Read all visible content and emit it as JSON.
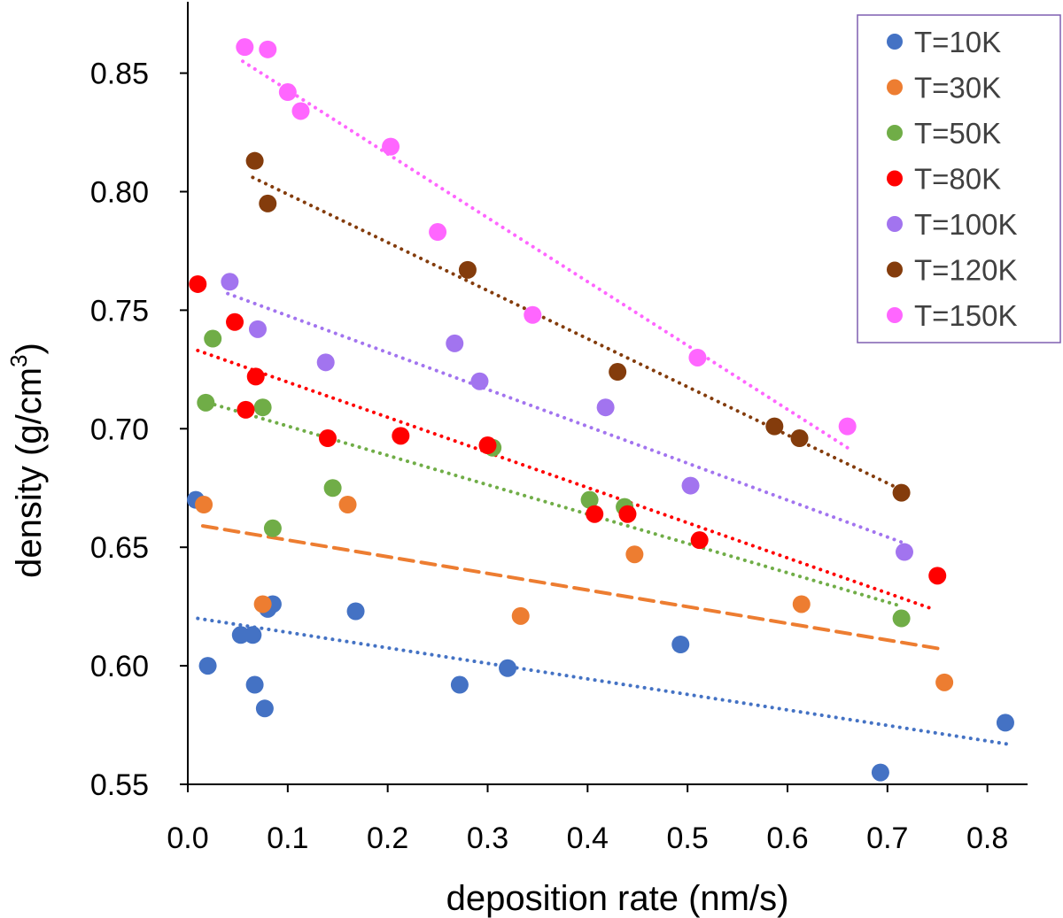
{
  "chart_data": {
    "type": "scatter",
    "title": "",
    "xlabel": "deposition rate (nm/s)",
    "ylabel_main": "density (g/cm",
    "ylabel_sup": "3",
    "ylabel_end": ")",
    "xlim": [
      0.0,
      0.85
    ],
    "ylim": [
      0.55,
      0.88
    ],
    "xticks": [
      0.0,
      0.1,
      0.2,
      0.3,
      0.4,
      0.5,
      0.6,
      0.7,
      0.8
    ],
    "xtick_labels": [
      "0.0",
      "0.1",
      "0.2",
      "0.3",
      "0.4",
      "0.5",
      "0.6",
      "0.7",
      "0.8"
    ],
    "yticks": [
      0.55,
      0.6,
      0.65,
      0.7,
      0.75,
      0.8,
      0.85
    ],
    "ytick_labels": [
      "0.55",
      "0.60",
      "0.65",
      "0.70",
      "0.75",
      "0.80",
      "0.85"
    ],
    "grid": false,
    "legend_position": "top-right",
    "series": [
      {
        "name": "T=10K",
        "color": "#4472C4",
        "trend_style": "dotted",
        "trend": [
          [
            0.01,
            0.62
          ],
          [
            0.82,
            0.567
          ]
        ],
        "points": [
          [
            0.008,
            0.67
          ],
          [
            0.02,
            0.6
          ],
          [
            0.053,
            0.613
          ],
          [
            0.065,
            0.613
          ],
          [
            0.067,
            0.592
          ],
          [
            0.077,
            0.582
          ],
          [
            0.08,
            0.624
          ],
          [
            0.085,
            0.626
          ],
          [
            0.168,
            0.623
          ],
          [
            0.272,
            0.592
          ],
          [
            0.32,
            0.599
          ],
          [
            0.493,
            0.609
          ],
          [
            0.693,
            0.555
          ],
          [
            0.818,
            0.576
          ]
        ]
      },
      {
        "name": "T=30K",
        "color": "#ED7D31",
        "trend_style": "dashed",
        "trend": [
          [
            0.015,
            0.659
          ],
          [
            0.755,
            0.607
          ]
        ],
        "points": [
          [
            0.016,
            0.668
          ],
          [
            0.075,
            0.626
          ],
          [
            0.16,
            0.668
          ],
          [
            0.333,
            0.621
          ],
          [
            0.447,
            0.647
          ],
          [
            0.614,
            0.626
          ],
          [
            0.757,
            0.593
          ]
        ]
      },
      {
        "name": "T=50K",
        "color": "#70AD47",
        "trend_style": "dotted",
        "trend": [
          [
            0.02,
            0.711
          ],
          [
            0.715,
            0.625
          ]
        ],
        "points": [
          [
            0.018,
            0.711
          ],
          [
            0.025,
            0.738
          ],
          [
            0.075,
            0.709
          ],
          [
            0.085,
            0.658
          ],
          [
            0.145,
            0.675
          ],
          [
            0.305,
            0.692
          ],
          [
            0.402,
            0.67
          ],
          [
            0.437,
            0.667
          ],
          [
            0.714,
            0.62
          ]
        ]
      },
      {
        "name": "T=80K",
        "color": "#FF0000",
        "trend_style": "dotted",
        "trend": [
          [
            0.01,
            0.733
          ],
          [
            0.745,
            0.624
          ]
        ],
        "points": [
          [
            0.01,
            0.761
          ],
          [
            0.047,
            0.745
          ],
          [
            0.058,
            0.708
          ],
          [
            0.068,
            0.722
          ],
          [
            0.14,
            0.696
          ],
          [
            0.213,
            0.697
          ],
          [
            0.3,
            0.693
          ],
          [
            0.407,
            0.664
          ],
          [
            0.44,
            0.664
          ],
          [
            0.512,
            0.653
          ],
          [
            0.75,
            0.638
          ]
        ]
      },
      {
        "name": "T=100K",
        "color": "#A274EF",
        "trend_style": "dotted",
        "trend": [
          [
            0.04,
            0.757
          ],
          [
            0.715,
            0.652
          ]
        ],
        "points": [
          [
            0.042,
            0.762
          ],
          [
            0.07,
            0.742
          ],
          [
            0.138,
            0.728
          ],
          [
            0.267,
            0.736
          ],
          [
            0.292,
            0.72
          ],
          [
            0.418,
            0.709
          ],
          [
            0.503,
            0.676
          ],
          [
            0.717,
            0.648
          ]
        ]
      },
      {
        "name": "T=120K",
        "color": "#843C0C",
        "trend_style": "dotted",
        "trend": [
          [
            0.065,
            0.806
          ],
          [
            0.715,
            0.674
          ]
        ],
        "points": [
          [
            0.067,
            0.813
          ],
          [
            0.08,
            0.795
          ],
          [
            0.28,
            0.767
          ],
          [
            0.43,
            0.724
          ],
          [
            0.587,
            0.701
          ],
          [
            0.612,
            0.696
          ],
          [
            0.714,
            0.673
          ]
        ]
      },
      {
        "name": "T=150K",
        "color": "#FF66FF",
        "trend_style": "dotted",
        "trend": [
          [
            0.055,
            0.855
          ],
          [
            0.66,
            0.692
          ]
        ],
        "points": [
          [
            0.057,
            0.861
          ],
          [
            0.08,
            0.86
          ],
          [
            0.1,
            0.842
          ],
          [
            0.113,
            0.834
          ],
          [
            0.203,
            0.819
          ],
          [
            0.25,
            0.783
          ],
          [
            0.345,
            0.748
          ],
          [
            0.51,
            0.73
          ],
          [
            0.66,
            0.701
          ]
        ]
      }
    ]
  }
}
